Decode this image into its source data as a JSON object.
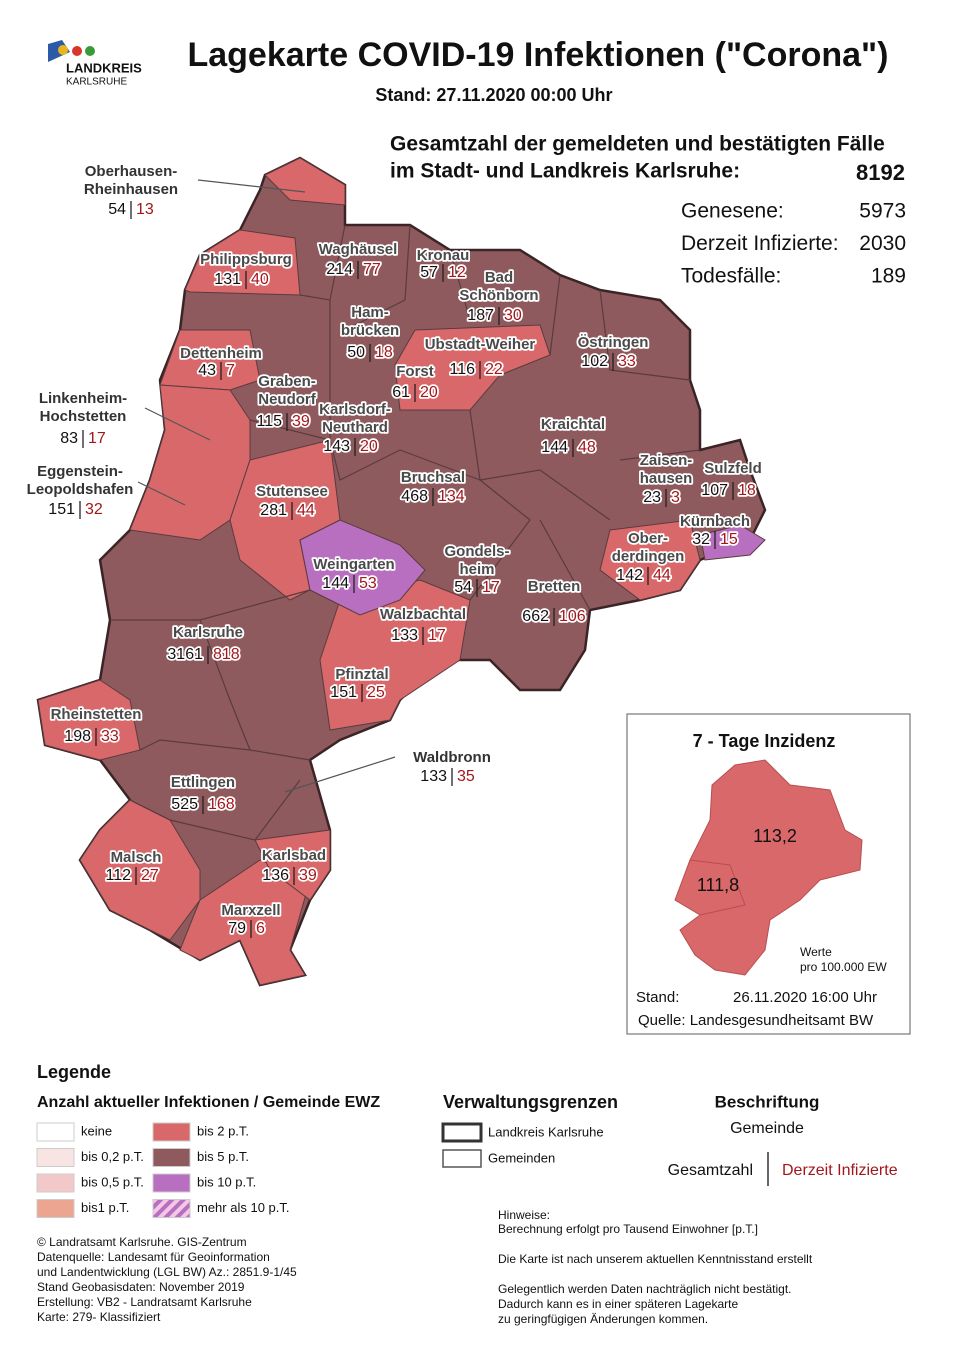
{
  "header": {
    "logo": [
      "LANDKREIS",
      "KARLSRUHE"
    ],
    "title": "Lagekarte COVID-19 Infektionen (\"Corona\")",
    "stand": "Stand: 27.11.2020 00:00 Uhr"
  },
  "summary": {
    "heading": [
      "Gesamtzahl der gemeldeten und bestätigten Fälle",
      "im Stadt- und Landkreis Karlsruhe:"
    ],
    "total": 8192,
    "rows": [
      {
        "label": "Genesene:",
        "value": 5973
      },
      {
        "label": "Derzeit Infizierte:",
        "value": 2030
      },
      {
        "label": "Todesfälle:",
        "value": 189
      }
    ]
  },
  "municipalities": [
    {
      "name": [
        "Oberhausen-",
        "Rheinhausen"
      ],
      "total": 54,
      "active": 13
    },
    {
      "name": [
        "Philippsburg"
      ],
      "total": 131,
      "active": 40
    },
    {
      "name": [
        "Waghäusel"
      ],
      "total": 214,
      "active": 77
    },
    {
      "name": [
        "Kronau"
      ],
      "total": 57,
      "active": 12
    },
    {
      "name": [
        "Bad",
        "Schönborn"
      ],
      "total": 187,
      "active": 30
    },
    {
      "name": [
        "Ham-",
        "brücken"
      ],
      "total": 50,
      "active": 18
    },
    {
      "name": [
        "Ubstadt-Weiher"
      ],
      "total": 116,
      "active": 22
    },
    {
      "name": [
        "Östringen"
      ],
      "total": 102,
      "active": 33
    },
    {
      "name": [
        "Dettenheim"
      ],
      "total": 43,
      "active": 7
    },
    {
      "name": [
        "Forst"
      ],
      "total": 61,
      "active": 20
    },
    {
      "name": [
        "Graben-",
        "Neudorf"
      ],
      "total": 115,
      "active": 39
    },
    {
      "name": [
        "Karlsdorf-",
        "Neuthard"
      ],
      "total": 143,
      "active": 20
    },
    {
      "name": [
        "Linkenheim-",
        "Hochstetten"
      ],
      "total": 83,
      "active": 17
    },
    {
      "name": [
        "Kraichtal"
      ],
      "total": 144,
      "active": 48
    },
    {
      "name": [
        "Eggenstein-",
        "Leopoldshafen"
      ],
      "total": 151,
      "active": 32
    },
    {
      "name": [
        "Zaisen-",
        "hausen"
      ],
      "total": 23,
      "active": 3
    },
    {
      "name": [
        "Sulzfeld"
      ],
      "total": 107,
      "active": 18
    },
    {
      "name": [
        "Bruchsal"
      ],
      "total": 468,
      "active": 134
    },
    {
      "name": [
        "Stutensee"
      ],
      "total": 281,
      "active": 44
    },
    {
      "name": [
        "Kürnbach"
      ],
      "total": 32,
      "active": 15
    },
    {
      "name": [
        "Weingarten"
      ],
      "total": 144,
      "active": 53
    },
    {
      "name": [
        "Gondels-",
        "heim"
      ],
      "total": 54,
      "active": 17
    },
    {
      "name": [
        "Ober-",
        "derdingen"
      ],
      "total": 142,
      "active": 44
    },
    {
      "name": [
        "Bretten"
      ],
      "total": 662,
      "active": 106
    },
    {
      "name": [
        "Walzbachtal"
      ],
      "total": 133,
      "active": 17
    },
    {
      "name": [
        "Karlsruhe"
      ],
      "total": 3161,
      "active": 818
    },
    {
      "name": [
        "Pfinztal"
      ],
      "total": 151,
      "active": 25
    },
    {
      "name": [
        "Rheinstetten"
      ],
      "total": 198,
      "active": 33
    },
    {
      "name": [
        "Waldbronn"
      ],
      "total": 133,
      "active": 35
    },
    {
      "name": [
        "Ettlingen"
      ],
      "total": 525,
      "active": 168
    },
    {
      "name": [
        "Malsch"
      ],
      "total": 112,
      "active": 27
    },
    {
      "name": [
        "Karlsbad"
      ],
      "total": 136,
      "active": 39
    },
    {
      "name": [
        "Marxzell"
      ],
      "total": 79,
      "active": 6
    }
  ],
  "inset": {
    "title": "7 - Tage Inzidenz",
    "landkreis": "113,2",
    "stadt": "111,8",
    "note": [
      "Werte",
      "pro 100.000 EW"
    ],
    "stand_label": "Stand:",
    "stand_date": "26.11.2020 16:00 Uhr",
    "source": "Quelle: Landesgesundheitsamt BW"
  },
  "legend": {
    "title": "Legende",
    "subtitle": "Anzahl aktueller Infektionen / Gemeinde EWZ",
    "items": [
      {
        "label": "keine",
        "color": "#ffffff"
      },
      {
        "label": "bis 0,2 p.T.",
        "color": "#f9e4e4"
      },
      {
        "label": "bis 0,5 p.T.",
        "color": "#f3c8c8"
      },
      {
        "label": "bis1 p.T.",
        "color": "#eba590"
      },
      {
        "label": "bis 2  p.T.",
        "color": "#d9686a"
      },
      {
        "label": "bis 5 p.T.",
        "color": "#8e5a5e"
      },
      {
        "label": "bis 10 p.T.",
        "color": "#b86fc0"
      },
      {
        "label": "mehr als 10 p.T.",
        "color": "#b86fc0",
        "hatched": true
      }
    ],
    "borders_title": "Verwaltungsgrenzen",
    "borders": [
      "Landkreis Karlsruhe",
      "Gemeinden"
    ],
    "labeling_title": "Beschriftung",
    "labeling": {
      "name": "Gemeinde",
      "total": "Gesamtzahl",
      "active": "Derzeit Infizierte"
    }
  },
  "credits": [
    "© Landratsamt Karlsruhe. GIS-Zentrum",
    "Datenquelle: Landesamt für Geoinformation",
    "und Landentwicklung (LGL BW) Az.: 2851.9-1/45",
    "Stand Geobasisdaten: November 2019",
    "Erstellung: VB2 - Landratsamt Karlsruhe",
    "Karte: 279- Klassifiziert"
  ],
  "notes": [
    "Hinweise:",
    "Berechnung erfolgt pro Tausend Einwohner  [p.T.]",
    "Die Karte ist nach unserem aktuellen Kenntnisstand erstellt",
    "Gelegentlich werden Daten nachträglich nicht bestätigt.",
    "Dadurch kann es in einer späteren Lagekarte",
    "zu geringfügigen Änderungen kommen."
  ]
}
